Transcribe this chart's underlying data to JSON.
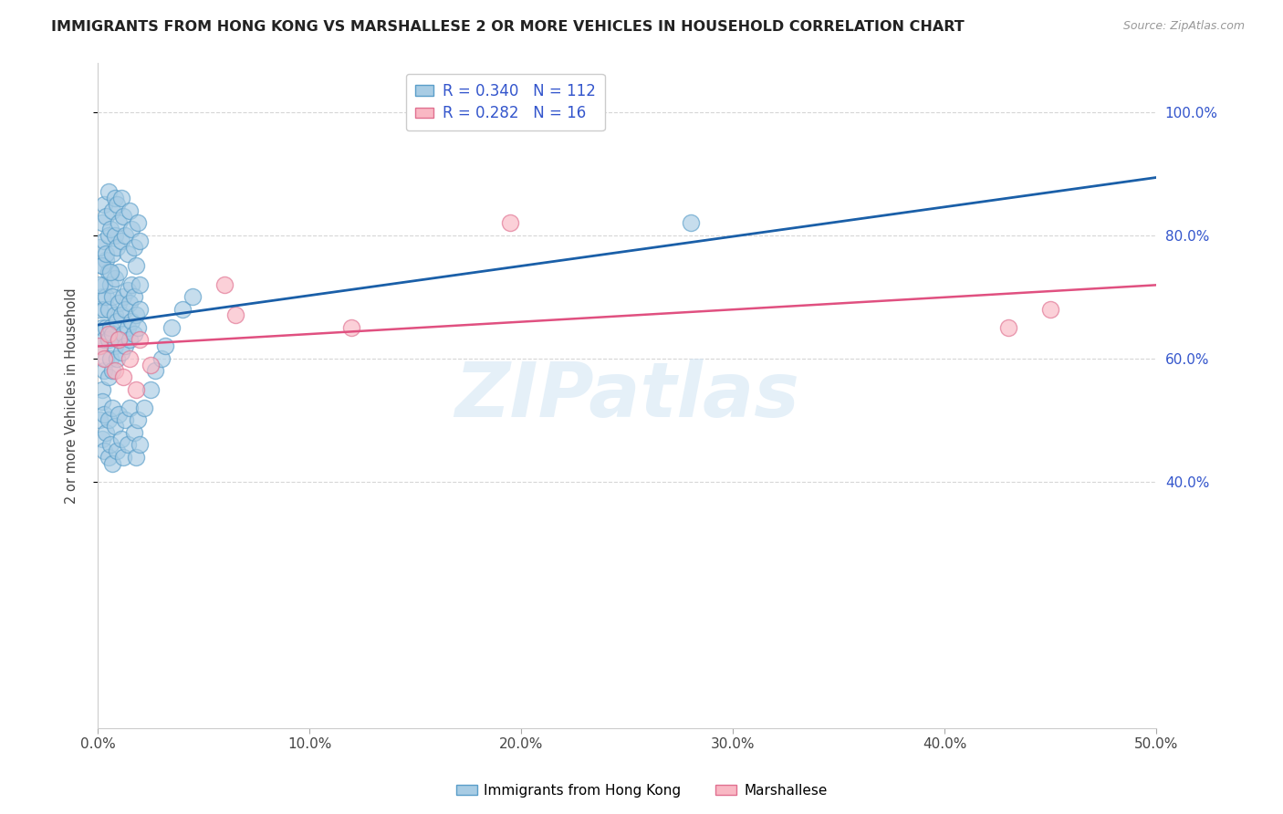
{
  "title": "IMMIGRANTS FROM HONG KONG VS MARSHALLESE 2 OR MORE VEHICLES IN HOUSEHOLD CORRELATION CHART",
  "source": "Source: ZipAtlas.com",
  "ylabel": "2 or more Vehicles in Household",
  "xmin": 0.0,
  "xmax": 0.5,
  "ymin": 0.0,
  "ymax": 1.08,
  "xtick_values": [
    0.0,
    0.1,
    0.2,
    0.3,
    0.4,
    0.5
  ],
  "xtick_labels": [
    "0.0%",
    "10.0%",
    "20.0%",
    "30.0%",
    "40.0%",
    "50.0%"
  ],
  "ytick_values": [
    0.4,
    0.6,
    0.8,
    1.0
  ],
  "ytick_labels": [
    "40.0%",
    "60.0%",
    "80.0%",
    "100.0%"
  ],
  "legend_labels": [
    "Immigrants from Hong Kong",
    "Marshallese"
  ],
  "hk_R": 0.34,
  "hk_N": 112,
  "marsh_R": 0.282,
  "marsh_N": 16,
  "hk_color": "#a8cce4",
  "hk_edge_color": "#5a9ec9",
  "marsh_color": "#f9b8c4",
  "marsh_edge_color": "#e07090",
  "hk_line_color": "#1a5fa8",
  "marsh_line_color": "#e05080",
  "watermark": "ZIPatlas",
  "hk_x": [
    0.001,
    0.001,
    0.002,
    0.002,
    0.002,
    0.002,
    0.003,
    0.003,
    0.003,
    0.003,
    0.004,
    0.004,
    0.004,
    0.004,
    0.005,
    0.005,
    0.005,
    0.005,
    0.006,
    0.006,
    0.006,
    0.007,
    0.007,
    0.007,
    0.008,
    0.008,
    0.008,
    0.009,
    0.009,
    0.01,
    0.01,
    0.01,
    0.011,
    0.011,
    0.012,
    0.012,
    0.013,
    0.013,
    0.014,
    0.014,
    0.015,
    0.015,
    0.016,
    0.016,
    0.017,
    0.017,
    0.018,
    0.019,
    0.02,
    0.02,
    0.001,
    0.001,
    0.002,
    0.002,
    0.003,
    0.003,
    0.004,
    0.004,
    0.005,
    0.005,
    0.006,
    0.006,
    0.007,
    0.007,
    0.008,
    0.008,
    0.009,
    0.009,
    0.01,
    0.011,
    0.011,
    0.012,
    0.013,
    0.014,
    0.015,
    0.016,
    0.017,
    0.018,
    0.019,
    0.02,
    0.001,
    0.002,
    0.002,
    0.003,
    0.003,
    0.004,
    0.005,
    0.005,
    0.006,
    0.007,
    0.007,
    0.008,
    0.009,
    0.01,
    0.011,
    0.012,
    0.013,
    0.014,
    0.015,
    0.017,
    0.018,
    0.019,
    0.02,
    0.022,
    0.025,
    0.027,
    0.03,
    0.032,
    0.035,
    0.04,
    0.045,
    0.28
  ],
  "hk_y": [
    0.62,
    0.68,
    0.55,
    0.65,
    0.7,
    0.75,
    0.58,
    0.63,
    0.68,
    0.72,
    0.6,
    0.65,
    0.7,
    0.76,
    0.57,
    0.63,
    0.68,
    0.74,
    0.6,
    0.65,
    0.72,
    0.58,
    0.64,
    0.7,
    0.62,
    0.67,
    0.73,
    0.6,
    0.66,
    0.63,
    0.69,
    0.74,
    0.61,
    0.67,
    0.64,
    0.7,
    0.62,
    0.68,
    0.65,
    0.71,
    0.63,
    0.69,
    0.66,
    0.72,
    0.64,
    0.7,
    0.67,
    0.65,
    0.68,
    0.72,
    0.72,
    0.78,
    0.75,
    0.82,
    0.79,
    0.85,
    0.77,
    0.83,
    0.8,
    0.87,
    0.74,
    0.81,
    0.77,
    0.84,
    0.8,
    0.86,
    0.78,
    0.85,
    0.82,
    0.79,
    0.86,
    0.83,
    0.8,
    0.77,
    0.84,
    0.81,
    0.78,
    0.75,
    0.82,
    0.79,
    0.5,
    0.47,
    0.53,
    0.45,
    0.51,
    0.48,
    0.44,
    0.5,
    0.46,
    0.52,
    0.43,
    0.49,
    0.45,
    0.51,
    0.47,
    0.44,
    0.5,
    0.46,
    0.52,
    0.48,
    0.44,
    0.5,
    0.46,
    0.52,
    0.55,
    0.58,
    0.6,
    0.62,
    0.65,
    0.68,
    0.7,
    0.82
  ],
  "marsh_x": [
    0.001,
    0.003,
    0.005,
    0.008,
    0.01,
    0.012,
    0.015,
    0.018,
    0.02,
    0.025,
    0.06,
    0.065,
    0.12,
    0.195,
    0.43,
    0.45
  ],
  "marsh_y": [
    0.62,
    0.6,
    0.64,
    0.58,
    0.63,
    0.57,
    0.6,
    0.55,
    0.63,
    0.59,
    0.72,
    0.67,
    0.65,
    0.82,
    0.65,
    0.68
  ]
}
